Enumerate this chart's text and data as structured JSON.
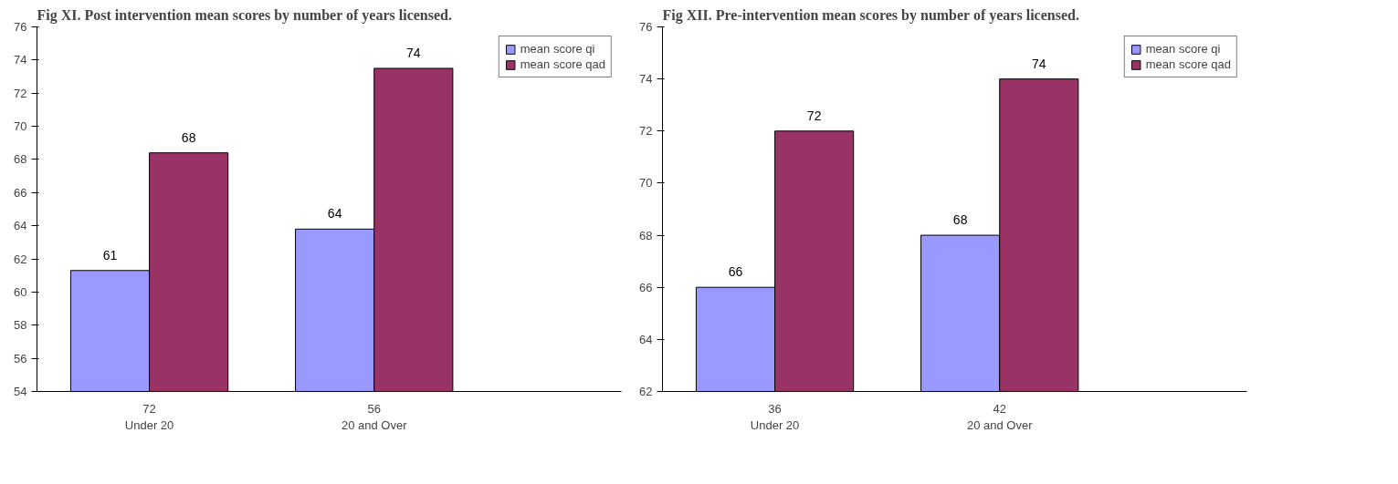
{
  "chart_data": [
    {
      "type": "bar",
      "title": "Fig XI. Post intervention mean scores by number of years licensed.",
      "categories": [
        "72\nUnder 20",
        "56\n20 and Over"
      ],
      "series": [
        {
          "name": "mean score qi",
          "color": "#9999ff",
          "values": [
            61.3,
            63.8
          ],
          "value_labels": [
            "61",
            "64"
          ]
        },
        {
          "name": "mean score qad",
          "color": "#993366",
          "values": [
            68.4,
            73.5
          ],
          "value_labels": [
            "68",
            "74"
          ]
        }
      ],
      "ylim": [
        54,
        76
      ],
      "yticks": [
        54,
        56,
        58,
        60,
        62,
        64,
        66,
        68,
        70,
        72,
        74,
        76
      ],
      "grid": false,
      "legend": "top right"
    },
    {
      "type": "bar",
      "title": "Fig XII. Pre-intervention mean scores by number of years licensed.",
      "categories": [
        "36\nUnder 20",
        "42\n20 and Over"
      ],
      "series": [
        {
          "name": "mean score qi",
          "color": "#9999ff",
          "values": [
            66,
            68
          ]
        },
        {
          "name": "mean score qad",
          "color": "#993366",
          "values": [
            72,
            74
          ]
        }
      ],
      "data_labels": true,
      "ylim": [
        62,
        76
      ],
      "yticks": [
        62,
        64,
        66,
        68,
        70,
        72,
        74,
        76
      ],
      "grid": false,
      "legend": "top right"
    }
  ]
}
